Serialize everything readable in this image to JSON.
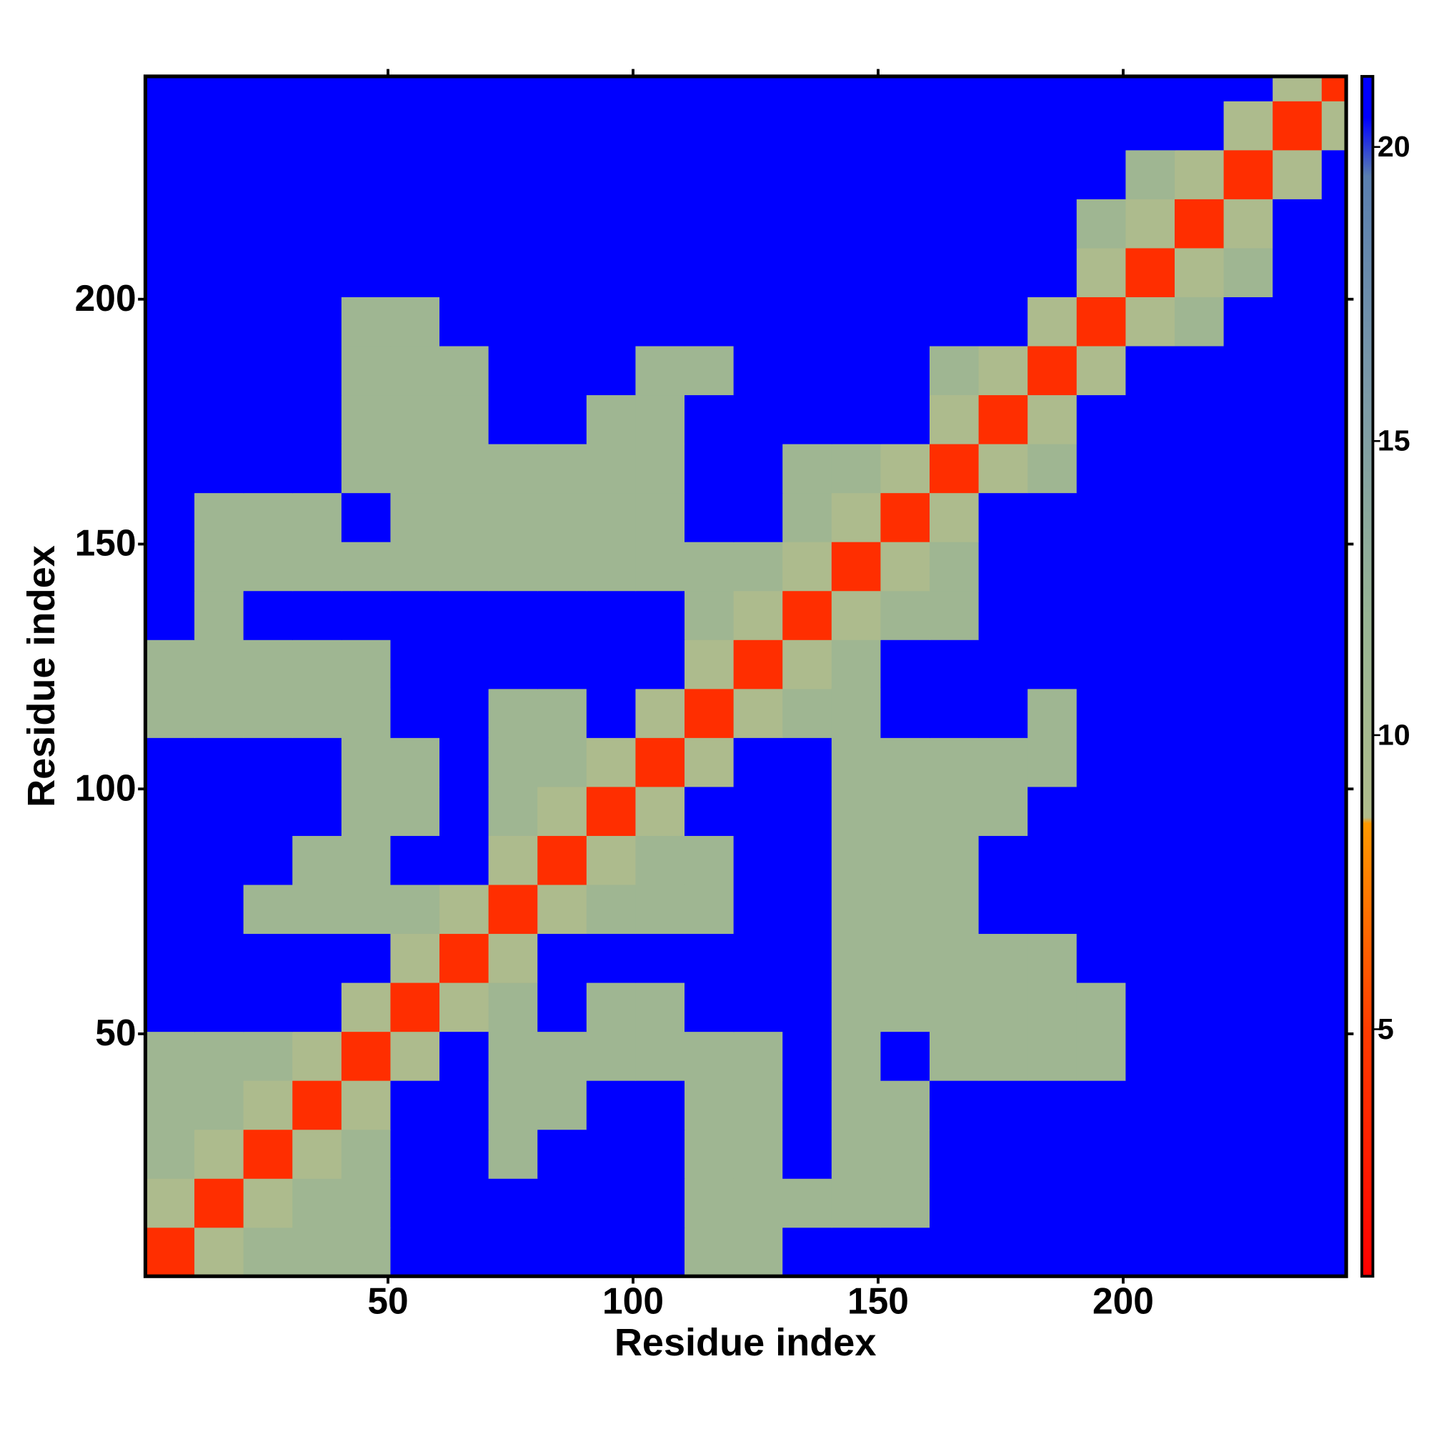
{
  "chart_data": {
    "type": "heatmap",
    "xlabel": "Residue index",
    "ylabel": "Residue index",
    "xlim": [
      0.5,
      245.5
    ],
    "ylim": [
      0.5,
      245.5
    ],
    "xticks": [
      50,
      100,
      150,
      200
    ],
    "yticks": [
      50,
      100,
      150,
      200
    ],
    "x_edges": [
      0.5,
      10.5,
      20.5,
      30.5,
      40.5,
      50.5,
      60.5,
      70.5,
      80.5,
      90.5,
      100.5,
      110.5,
      120.5,
      130.5,
      140.5,
      150.5,
      160.5,
      170.5,
      180.5,
      190.5,
      200.5,
      210.5,
      220.5,
      230.5,
      240.5,
      245.5
    ],
    "y_edges": [
      0.5,
      10.5,
      20.5,
      30.5,
      40.5,
      50.5,
      60.5,
      70.5,
      80.5,
      90.5,
      100.5,
      110.5,
      120.5,
      130.5,
      140.5,
      150.5,
      160.5,
      170.5,
      180.5,
      190.5,
      200.5,
      210.5,
      220.5,
      230.5,
      240.5,
      245.5
    ],
    "zlim": [
      0.8,
      21.2
    ],
    "zticks": [
      5,
      10,
      15,
      20
    ],
    "colorscale": [
      [
        0.8,
        "#ff0000"
      ],
      [
        5,
        "#ff3c00"
      ],
      [
        8.5,
        "#ff9900"
      ],
      [
        8.6,
        "#b0bc8c"
      ],
      [
        12,
        "#98b494"
      ],
      [
        16,
        "#7a98a8"
      ],
      [
        19.5,
        "#5a7fb0"
      ],
      [
        20.5,
        "#0000ff"
      ],
      [
        21.2,
        "#0000ff"
      ]
    ],
    "z": [
      [
        4,
        9,
        11,
        11,
        11,
        21,
        21,
        21,
        21,
        21,
        21,
        11,
        11,
        21,
        21,
        21,
        21,
        21,
        21,
        21,
        21,
        21,
        21,
        21,
        21
      ],
      [
        9,
        4,
        9,
        11,
        11,
        21,
        21,
        21,
        21,
        21,
        21,
        11,
        11,
        11,
        11,
        11,
        21,
        21,
        21,
        21,
        21,
        21,
        21,
        21,
        21
      ],
      [
        11,
        9,
        4,
        9,
        11,
        21,
        21,
        11,
        21,
        21,
        21,
        11,
        11,
        21,
        11,
        11,
        21,
        21,
        21,
        21,
        21,
        21,
        21,
        21,
        21
      ],
      [
        11,
        11,
        9,
        4,
        9,
        21,
        21,
        11,
        11,
        21,
        21,
        11,
        11,
        21,
        11,
        11,
        21,
        21,
        21,
        21,
        21,
        21,
        21,
        21,
        21
      ],
      [
        11,
        11,
        11,
        9,
        4,
        9,
        21,
        11,
        11,
        11,
        11,
        11,
        11,
        21,
        11,
        21,
        11,
        11,
        11,
        11,
        21,
        21,
        21,
        21,
        21
      ],
      [
        21,
        21,
        21,
        21,
        9,
        4,
        9,
        11,
        21,
        11,
        11,
        21,
        21,
        21,
        11,
        11,
        11,
        11,
        11,
        11,
        21,
        21,
        21,
        21,
        21
      ],
      [
        21,
        21,
        21,
        21,
        21,
        9,
        4,
        9,
        21,
        21,
        21,
        21,
        21,
        21,
        11,
        11,
        11,
        11,
        11,
        21,
        21,
        21,
        21,
        21,
        21
      ],
      [
        21,
        21,
        11,
        11,
        11,
        11,
        9,
        4,
        9,
        11,
        11,
        11,
        21,
        21,
        11,
        11,
        11,
        21,
        21,
        21,
        21,
        21,
        21,
        21,
        21
      ],
      [
        21,
        21,
        21,
        11,
        11,
        21,
        21,
        9,
        4,
        9,
        11,
        11,
        21,
        21,
        11,
        11,
        11,
        21,
        21,
        21,
        21,
        21,
        21,
        21,
        21
      ],
      [
        21,
        21,
        21,
        21,
        11,
        11,
        21,
        11,
        9,
        4,
        9,
        21,
        21,
        21,
        11,
        11,
        11,
        11,
        21,
        21,
        21,
        21,
        21,
        21,
        21
      ],
      [
        21,
        21,
        21,
        21,
        11,
        11,
        21,
        11,
        11,
        9,
        4,
        9,
        21,
        21,
        11,
        11,
        11,
        11,
        11,
        21,
        21,
        21,
        21,
        21,
        21
      ],
      [
        11,
        11,
        11,
        11,
        11,
        21,
        21,
        11,
        11,
        21,
        9,
        4,
        9,
        11,
        11,
        21,
        21,
        21,
        11,
        21,
        21,
        21,
        21,
        21,
        21
      ],
      [
        11,
        11,
        11,
        11,
        11,
        21,
        21,
        21,
        21,
        21,
        21,
        9,
        4,
        9,
        11,
        21,
        21,
        21,
        21,
        21,
        21,
        21,
        21,
        21,
        21
      ],
      [
        21,
        11,
        21,
        21,
        21,
        21,
        21,
        21,
        21,
        21,
        21,
        11,
        9,
        4,
        9,
        11,
        11,
        21,
        21,
        21,
        21,
        21,
        21,
        21,
        21
      ],
      [
        21,
        11,
        11,
        11,
        11,
        11,
        11,
        11,
        11,
        11,
        11,
        11,
        11,
        9,
        4,
        9,
        11,
        21,
        21,
        21,
        21,
        21,
        21,
        21,
        21
      ],
      [
        21,
        11,
        11,
        11,
        21,
        11,
        11,
        11,
        11,
        11,
        11,
        21,
        21,
        11,
        9,
        4,
        9,
        21,
        21,
        21,
        21,
        21,
        21,
        21,
        21
      ],
      [
        21,
        21,
        21,
        21,
        11,
        11,
        11,
        11,
        11,
        11,
        11,
        21,
        21,
        11,
        11,
        9,
        4,
        9,
        11,
        21,
        21,
        21,
        21,
        21,
        21
      ],
      [
        21,
        21,
        21,
        21,
        11,
        11,
        11,
        21,
        21,
        11,
        11,
        21,
        21,
        21,
        21,
        21,
        9,
        4,
        9,
        21,
        21,
        21,
        21,
        21,
        21
      ],
      [
        21,
        21,
        21,
        21,
        11,
        11,
        11,
        21,
        21,
        21,
        11,
        11,
        21,
        21,
        21,
        21,
        11,
        9,
        4,
        9,
        21,
        21,
        21,
        21,
        21
      ],
      [
        21,
        21,
        21,
        21,
        11,
        11,
        21,
        21,
        21,
        21,
        21,
        21,
        21,
        21,
        21,
        21,
        21,
        21,
        9,
        4,
        9,
        11,
        21,
        21,
        21
      ],
      [
        21,
        21,
        21,
        21,
        21,
        21,
        21,
        21,
        21,
        21,
        21,
        21,
        21,
        21,
        21,
        21,
        21,
        21,
        21,
        9,
        4,
        9,
        11,
        21,
        21
      ],
      [
        21,
        21,
        21,
        21,
        21,
        21,
        21,
        21,
        21,
        21,
        21,
        21,
        21,
        21,
        21,
        21,
        21,
        21,
        21,
        11,
        9,
        4,
        9,
        21,
        21
      ],
      [
        21,
        21,
        21,
        21,
        21,
        21,
        21,
        21,
        21,
        21,
        21,
        21,
        21,
        21,
        21,
        21,
        21,
        21,
        21,
        21,
        11,
        9,
        4,
        9,
        21
      ],
      [
        21,
        21,
        21,
        21,
        21,
        21,
        21,
        21,
        21,
        21,
        21,
        21,
        21,
        21,
        21,
        21,
        21,
        21,
        21,
        21,
        21,
        21,
        9,
        4,
        9
      ],
      [
        21,
        21,
        21,
        21,
        21,
        21,
        21,
        21,
        21,
        21,
        21,
        21,
        21,
        21,
        21,
        21,
        21,
        21,
        21,
        21,
        21,
        21,
        21,
        9,
        4
      ]
    ]
  }
}
